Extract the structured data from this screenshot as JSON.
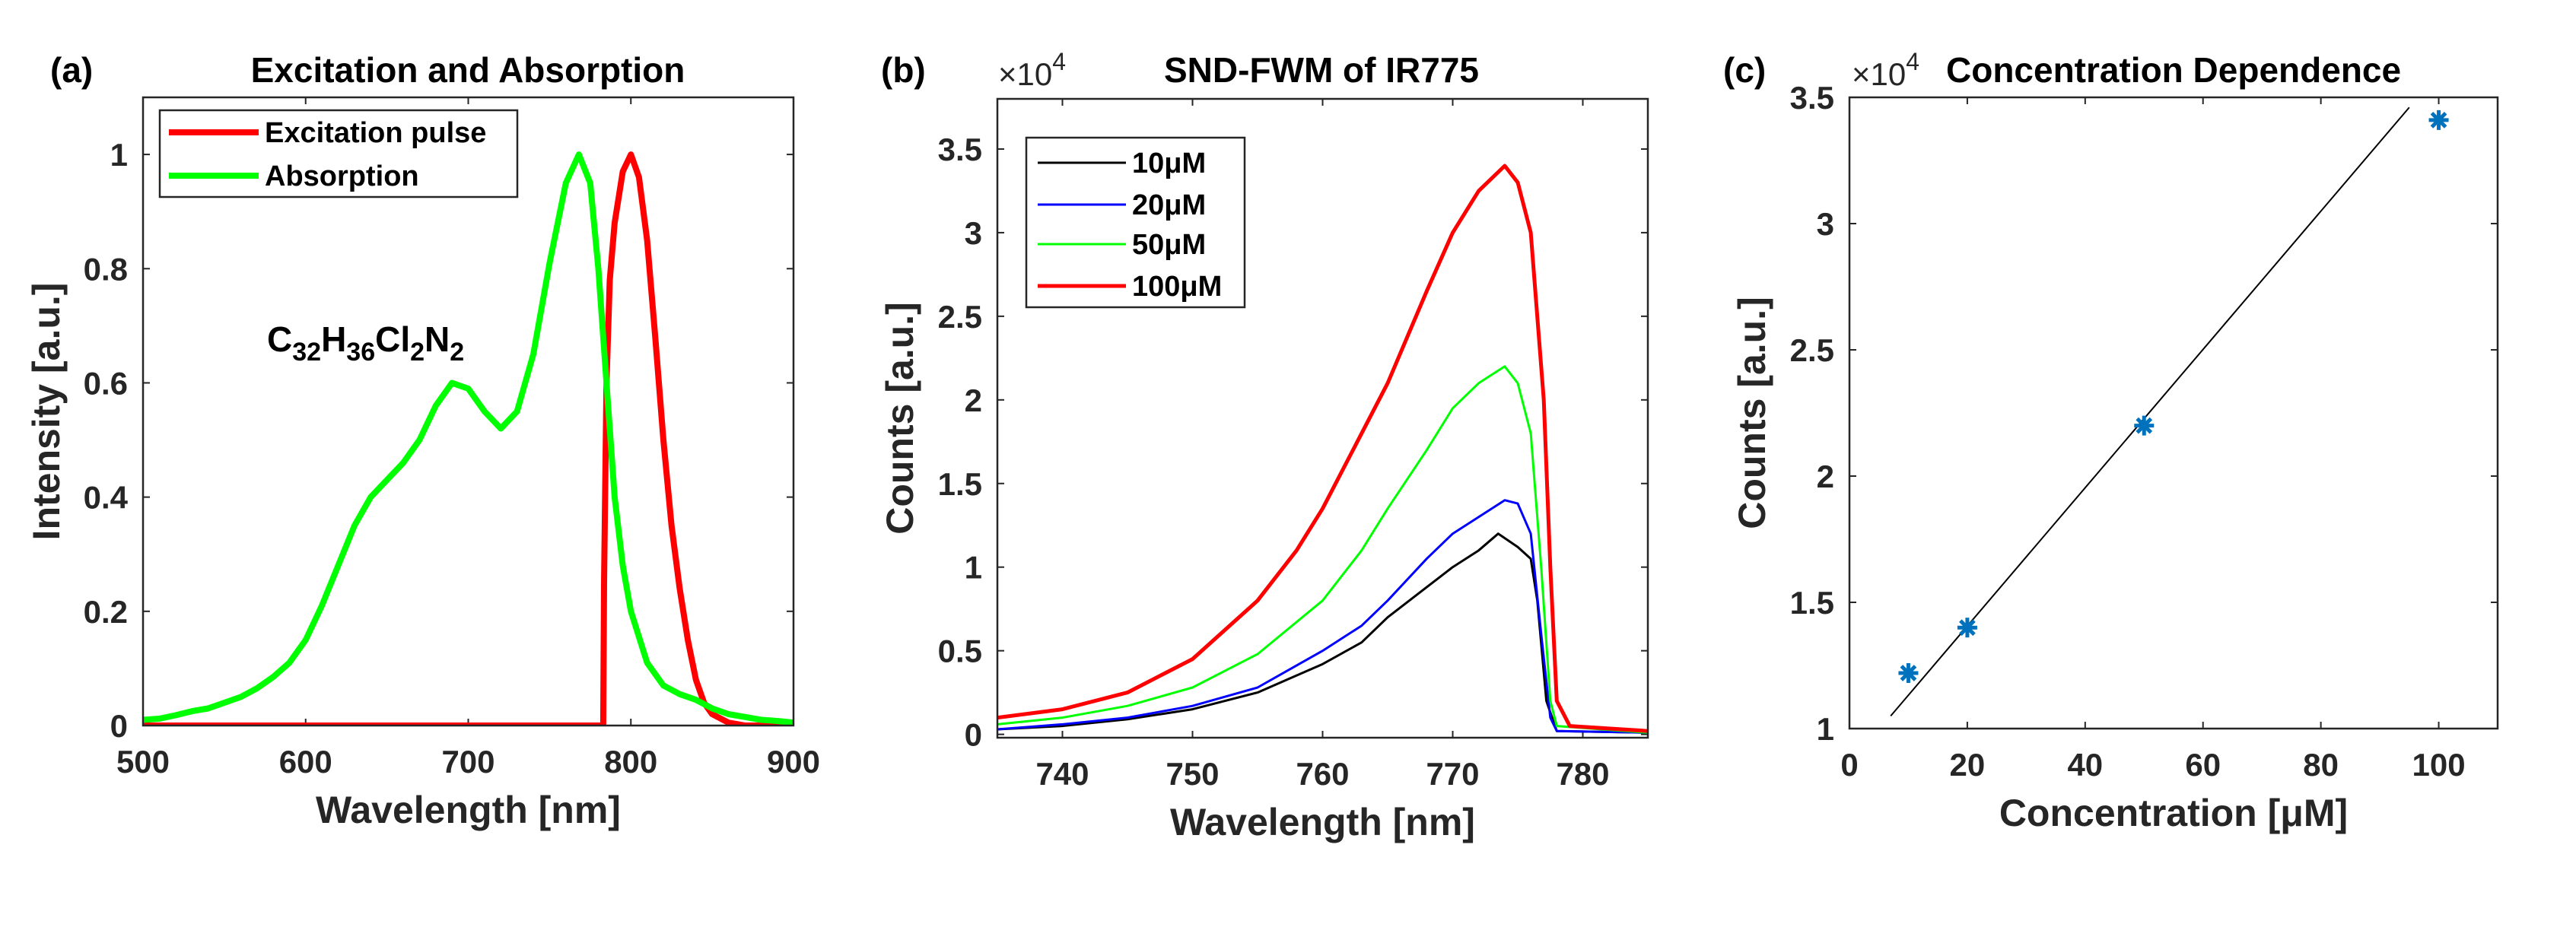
{
  "chart_data": [
    {
      "type": "line",
      "panel_label": "(a)",
      "title": "Excitation and Absorption",
      "xlabel": "Wavelength [nm]",
      "ylabel": "Intensity [a.u.]",
      "xlim": [
        500,
        900
      ],
      "ylim": [
        0,
        1.1
      ],
      "xticks": [
        500,
        600,
        700,
        800,
        900
      ],
      "yticks": [
        0,
        0.2,
        0.4,
        0.6,
        0.8,
        1
      ],
      "ytick_labels": [
        "0",
        "0.2",
        "0.4",
        "0.6",
        "0.8",
        "1"
      ],
      "legend_placement": "top-left",
      "annotation_parts": [
        [
          "C",
          ""
        ],
        [
          "32",
          "sub"
        ],
        [
          "H",
          ""
        ],
        [
          "36",
          "sub"
        ],
        [
          "Cl",
          ""
        ],
        [
          "2",
          "sub"
        ],
        [
          "N",
          ""
        ],
        [
          "2",
          "sub"
        ]
      ],
      "series": [
        {
          "name": "Excitation pulse",
          "color": "#ff0000",
          "width": 8,
          "x": [
            500,
            600,
            700,
            783,
            783.5,
            785,
            787,
            790,
            795,
            800,
            805,
            810,
            815,
            820,
            825,
            830,
            835,
            840,
            845,
            850,
            860,
            870,
            900
          ],
          "y": [
            0,
            0,
            0,
            0,
            0.25,
            0.6,
            0.78,
            0.88,
            0.97,
            1.0,
            0.96,
            0.85,
            0.68,
            0.5,
            0.35,
            0.24,
            0.15,
            0.08,
            0.04,
            0.02,
            0.005,
            0,
            0
          ]
        },
        {
          "name": "Absorption",
          "color": "#00ff00",
          "width": 8,
          "x": [
            500,
            510,
            520,
            530,
            540,
            550,
            560,
            570,
            580,
            590,
            600,
            610,
            620,
            630,
            640,
            650,
            660,
            670,
            680,
            690,
            700,
            710,
            720,
            730,
            740,
            750,
            760,
            768,
            775,
            780,
            785,
            790,
            795,
            800,
            810,
            820,
            830,
            840,
            850,
            860,
            870,
            880,
            890,
            900
          ],
          "y": [
            0.01,
            0.012,
            0.018,
            0.025,
            0.03,
            0.04,
            0.05,
            0.065,
            0.085,
            0.11,
            0.15,
            0.21,
            0.28,
            0.35,
            0.4,
            0.43,
            0.46,
            0.5,
            0.56,
            0.6,
            0.59,
            0.55,
            0.52,
            0.55,
            0.65,
            0.81,
            0.95,
            1.0,
            0.95,
            0.8,
            0.6,
            0.4,
            0.28,
            0.2,
            0.11,
            0.07,
            0.055,
            0.045,
            0.03,
            0.02,
            0.015,
            0.01,
            0.008,
            0.005
          ]
        }
      ]
    },
    {
      "type": "line",
      "panel_label": "(b)",
      "title": "SND-FWM of IR775",
      "xlabel": "Wavelength [nm]",
      "ylabel": "Counts [a.u.]",
      "multiplier": "×10",
      "exponent": "4",
      "xlim": [
        735,
        785
      ],
      "ylim": [
        -0.02,
        3.8
      ],
      "xticks": [
        740,
        750,
        760,
        770,
        780
      ],
      "yticks": [
        0,
        0.5,
        1,
        1.5,
        2,
        2.5,
        3,
        3.5
      ],
      "ytick_labels": [
        "0",
        "0.5",
        "1",
        "1.5",
        "2",
        "2.5",
        "3",
        "3.5"
      ],
      "legend_placement": "top-left",
      "series": [
        {
          "name": "10μM",
          "color": "#000000",
          "width": 3,
          "x": [
            735,
            740,
            745,
            750,
            755,
            760,
            763,
            765,
            768,
            770,
            772,
            773.5,
            775,
            776,
            776.5,
            777.2,
            778,
            785
          ],
          "y": [
            0.03,
            0.05,
            0.09,
            0.15,
            0.25,
            0.42,
            0.55,
            0.7,
            0.88,
            1.0,
            1.1,
            1.2,
            1.12,
            1.05,
            0.8,
            0.2,
            0.02,
            0.01
          ]
        },
        {
          "name": "20μM",
          "color": "#0000ff",
          "width": 3,
          "x": [
            735,
            740,
            745,
            750,
            755,
            760,
            763,
            765,
            768,
            770,
            772,
            774,
            775,
            776,
            776.8,
            777.5,
            778,
            785
          ],
          "y": [
            0.03,
            0.06,
            0.1,
            0.17,
            0.28,
            0.5,
            0.65,
            0.8,
            1.05,
            1.2,
            1.3,
            1.4,
            1.38,
            1.2,
            0.6,
            0.1,
            0.02,
            0.01
          ]
        },
        {
          "name": "50μM",
          "color": "#00ff00",
          "width": 3,
          "x": [
            735,
            740,
            745,
            750,
            755,
            760,
            763,
            765,
            768,
            770,
            772,
            774,
            775,
            776,
            776.8,
            777.5,
            778,
            785
          ],
          "y": [
            0.06,
            0.1,
            0.17,
            0.28,
            0.48,
            0.8,
            1.1,
            1.35,
            1.7,
            1.95,
            2.1,
            2.2,
            2.1,
            1.8,
            1.0,
            0.2,
            0.05,
            0.01
          ]
        },
        {
          "name": "100μM",
          "color": "#ff0000",
          "width": 5,
          "x": [
            735,
            740,
            745,
            750,
            755,
            758,
            760,
            763,
            765,
            768,
            770,
            772,
            774,
            775,
            776,
            777,
            777.5,
            778,
            779,
            785
          ],
          "y": [
            0.1,
            0.15,
            0.25,
            0.45,
            0.8,
            1.1,
            1.35,
            1.8,
            2.1,
            2.65,
            3.0,
            3.25,
            3.4,
            3.3,
            3.0,
            2.0,
            1.0,
            0.2,
            0.05,
            0.02
          ]
        }
      ]
    },
    {
      "type": "scatter",
      "panel_label": "(c)",
      "title": "Concentration Dependence",
      "xlabel": "Concentration [μM]",
      "ylabel": "Counts [a.u.]",
      "multiplier": "×10",
      "exponent": "4",
      "xlim": [
        0,
        110
      ],
      "ylim": [
        1,
        3.5
      ],
      "xticks": [
        0,
        20,
        40,
        60,
        80,
        100
      ],
      "yticks": [
        1,
        1.5,
        2,
        2.5,
        3,
        3.5
      ],
      "ytick_labels": [
        "1",
        "1.5",
        "2",
        "2.5",
        "3",
        "3.5"
      ],
      "points": {
        "x": [
          10,
          20,
          50,
          100
        ],
        "y": [
          1.22,
          1.4,
          2.2,
          3.41
        ],
        "color": "#0072bd",
        "marker": "asterisk"
      },
      "fit_line": {
        "x": [
          7,
          95
        ],
        "y": [
          1.05,
          3.46
        ],
        "color": "#000000"
      }
    }
  ]
}
